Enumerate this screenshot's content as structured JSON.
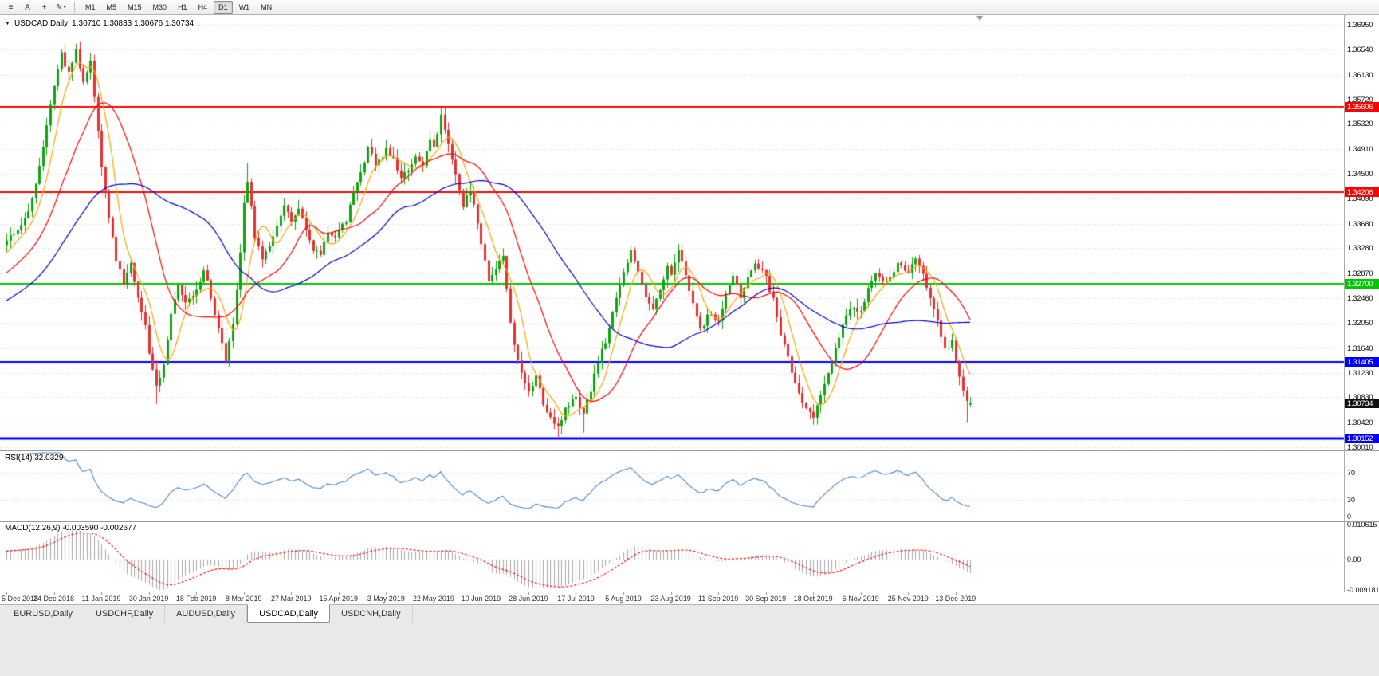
{
  "toolbar": {
    "tools": [
      {
        "name": "charts-list",
        "glyph": "≡"
      },
      {
        "name": "text-annotation",
        "glyph": "A"
      },
      {
        "name": "crosshair-tool",
        "glyph": "+"
      },
      {
        "name": "draw-tool",
        "glyph": "✎",
        "dropdown_glyph": "▾"
      }
    ],
    "timeframes": [
      {
        "label": "M1",
        "active": false
      },
      {
        "label": "M5",
        "active": false
      },
      {
        "label": "M15",
        "active": false
      },
      {
        "label": "M30",
        "active": false
      },
      {
        "label": "H1",
        "active": false
      },
      {
        "label": "H4",
        "active": false
      },
      {
        "label": "D1",
        "active": true
      },
      {
        "label": "W1",
        "active": false
      },
      {
        "label": "MN",
        "active": false
      }
    ]
  },
  "chart": {
    "dropdown_glyph": "▼",
    "symbol": "USDCAD,Daily",
    "ohlc_text": "1.30710 1.30833 1.30676 1.30734",
    "current_price": "1.30734",
    "price_axis": [
      "1.36950",
      "1.36540",
      "1.36130",
      "1.35720",
      "1.35320",
      "1.34910",
      "1.34500",
      "1.34090",
      "1.33680",
      "1.33280",
      "1.32870",
      "1.32460",
      "1.32050",
      "1.31640",
      "1.31230",
      "1.30830",
      "1.30420",
      "1.30010"
    ],
    "dates": [
      "5 Dec 2018",
      "24 Dec 2018",
      "11 Jan 2019",
      "30 Jan 2019",
      "18 Feb 2019",
      "8 Mar 2019",
      "27 Mar 2019",
      "15 Apr 2019",
      "3 May 2019",
      "22 May 2019",
      "10 Jun 2019",
      "28 Jun 2019",
      "17 Jul 2019",
      "5 Aug 2019",
      "23 Aug 2019",
      "11 Sep 2019",
      "30 Sep 2019",
      "18 Oct 2019",
      "6 Nov 2019",
      "25 Nov 2019",
      "13 Dec 2019"
    ]
  },
  "rsi": {
    "title": "RSI(14)",
    "value": "32.0329",
    "scale": [
      "70",
      "30",
      "0"
    ]
  },
  "macd": {
    "title": "MACD(12,26,9)",
    "value": "-0.003590 -0.002677",
    "scale": [
      "0.010615",
      "0.00",
      "-0.009181"
    ]
  },
  "tabs": [
    {
      "label": "EURUSD,Daily",
      "active": false
    },
    {
      "label": "USDCHF,Daily",
      "active": false
    },
    {
      "label": "AUDUSD,Daily",
      "active": false
    },
    {
      "label": "USDCAD,Daily",
      "active": true
    },
    {
      "label": "USDCNH,Daily",
      "active": false
    }
  ],
  "chart_data": {
    "type": "candlestick",
    "symbol": "USDCAD",
    "timeframe": "Daily",
    "x_range": {
      "start": "5 Dec 2018",
      "end": "20 Dec 2019",
      "bars_visible": 265
    },
    "y_axis": {
      "min": 1.29945,
      "max": 1.3708
    },
    "levels": [
      {
        "price": 1.35606,
        "label": "1.35606",
        "color": "#FF0000",
        "width": 2,
        "role": "resistance"
      },
      {
        "price": 1.34206,
        "label": "1.34206",
        "color": "#FF0000",
        "width": 2,
        "role": "resistance"
      },
      {
        "price": 1.327,
        "label": "1.32700",
        "color": "#00C800",
        "width": 2,
        "role": "pivot"
      },
      {
        "price": 1.31405,
        "label": "1.31405",
        "color": "#0000FF",
        "width": 2,
        "role": "support"
      },
      {
        "price": 1.30152,
        "label": "1.30152",
        "color": "#0000FF",
        "width": 3,
        "role": "support"
      }
    ],
    "last_candle": {
      "open": 1.3071,
      "high": 1.30833,
      "low": 1.30676,
      "close": 1.30734
    },
    "close_path_anchors": [
      [
        0,
        1.334
      ],
      [
        3,
        1.3358
      ],
      [
        6,
        1.3392
      ],
      [
        8,
        1.3434
      ],
      [
        11,
        1.353
      ],
      [
        13,
        1.359
      ],
      [
        15,
        1.3646
      ],
      [
        17,
        1.3614
      ],
      [
        19,
        1.3653
      ],
      [
        21,
        1.3598
      ],
      [
        23,
        1.3636
      ],
      [
        25,
        1.3524
      ],
      [
        26,
        1.3462
      ],
      [
        28,
        1.3378
      ],
      [
        30,
        1.331
      ],
      [
        32,
        1.327
      ],
      [
        34,
        1.3302
      ],
      [
        36,
        1.3244
      ],
      [
        38,
        1.3206
      ],
      [
        39,
        1.3152
      ],
      [
        41,
        1.3098
      ],
      [
        43,
        1.3136
      ],
      [
        45,
        1.3216
      ],
      [
        47,
        1.3272
      ],
      [
        49,
        1.3238
      ],
      [
        52,
        1.3256
      ],
      [
        54,
        1.3296
      ],
      [
        56,
        1.3248
      ],
      [
        58,
        1.3196
      ],
      [
        60,
        1.314
      ],
      [
        62,
        1.3206
      ],
      [
        64,
        1.332
      ],
      [
        65,
        1.3404
      ],
      [
        66,
        1.344
      ],
      [
        68,
        1.3346
      ],
      [
        70,
        1.3312
      ],
      [
        72,
        1.3334
      ],
      [
        74,
        1.3364
      ],
      [
        76,
        1.3398
      ],
      [
        78,
        1.3372
      ],
      [
        80,
        1.3392
      ],
      [
        82,
        1.3356
      ],
      [
        84,
        1.3324
      ],
      [
        86,
        1.3316
      ],
      [
        88,
        1.3358
      ],
      [
        90,
        1.3346
      ],
      [
        93,
        1.3374
      ],
      [
        95,
        1.342
      ],
      [
        97,
        1.345
      ],
      [
        99,
        1.3492
      ],
      [
        101,
        1.3466
      ],
      [
        104,
        1.3488
      ],
      [
        106,
        1.3472
      ],
      [
        108,
        1.3446
      ],
      [
        110,
        1.3454
      ],
      [
        112,
        1.3482
      ],
      [
        114,
        1.3466
      ],
      [
        116,
        1.3506
      ],
      [
        117,
        1.3494
      ],
      [
        119,
        1.3544
      ],
      [
        121,
        1.3496
      ],
      [
        123,
        1.3452
      ],
      [
        125,
        1.3398
      ],
      [
        127,
        1.3426
      ],
      [
        129,
        1.3372
      ],
      [
        130,
        1.3336
      ],
      [
        132,
        1.3274
      ],
      [
        134,
        1.3296
      ],
      [
        136,
        1.3318
      ],
      [
        138,
        1.3206
      ],
      [
        140,
        1.314
      ],
      [
        143,
        1.3094
      ],
      [
        145,
        1.3118
      ],
      [
        147,
        1.3074
      ],
      [
        149,
        1.305
      ],
      [
        151,
        1.3036
      ],
      [
        153,
        1.3062
      ],
      [
        156,
        1.3086
      ],
      [
        158,
        1.3054
      ],
      [
        160,
        1.3096
      ],
      [
        162,
        1.314
      ],
      [
        164,
        1.3176
      ],
      [
        166,
        1.3226
      ],
      [
        168,
        1.3268
      ],
      [
        169,
        1.3292
      ],
      [
        171,
        1.3324
      ],
      [
        173,
        1.3286
      ],
      [
        175,
        1.3244
      ],
      [
        177,
        1.3226
      ],
      [
        179,
        1.3256
      ],
      [
        181,
        1.3298
      ],
      [
        182,
        1.3288
      ],
      [
        184,
        1.3324
      ],
      [
        186,
        1.3284
      ],
      [
        188,
        1.3236
      ],
      [
        190,
        1.3194
      ],
      [
        192,
        1.3216
      ],
      [
        195,
        1.3212
      ],
      [
        197,
        1.3252
      ],
      [
        199,
        1.3282
      ],
      [
        201,
        1.3246
      ],
      [
        203,
        1.3282
      ],
      [
        205,
        1.3304
      ],
      [
        207,
        1.329
      ],
      [
        208,
        1.3278
      ],
      [
        210,
        1.3242
      ],
      [
        212,
        1.3186
      ],
      [
        214,
        1.3148
      ],
      [
        216,
        1.3106
      ],
      [
        218,
        1.3078
      ],
      [
        221,
        1.3052
      ],
      [
        223,
        1.3084
      ],
      [
        225,
        1.3124
      ],
      [
        227,
        1.3164
      ],
      [
        229,
        1.3204
      ],
      [
        231,
        1.323
      ],
      [
        234,
        1.3224
      ],
      [
        236,
        1.326
      ],
      [
        238,
        1.3286
      ],
      [
        240,
        1.327
      ],
      [
        242,
        1.3284
      ],
      [
        244,
        1.33
      ],
      [
        247,
        1.329
      ],
      [
        249,
        1.331
      ],
      [
        251,
        1.3284
      ],
      [
        253,
        1.3244
      ],
      [
        255,
        1.3206
      ],
      [
        257,
        1.3164
      ],
      [
        259,
        1.3174
      ],
      [
        260,
        1.3144
      ],
      [
        261,
        1.312
      ],
      [
        262,
        1.3094
      ],
      [
        263,
        1.3074
      ],
      [
        264,
        1.30734
      ]
    ],
    "warmup_anchors": [
      [
        -60,
        1.315
      ],
      [
        -40,
        1.318
      ],
      [
        -25,
        1.3225
      ],
      [
        -12,
        1.3272
      ],
      [
        -1,
        1.333
      ]
    ],
    "warmup_bars": 60,
    "noise_seed": 20191220,
    "noise_close": 0.0009,
    "noise_wick": 0.0015,
    "special_wicks": [
      {
        "index": 19,
        "high": 1.3664
      },
      {
        "index": 41,
        "low": 1.3072
      },
      {
        "index": 66,
        "high": 1.3468
      },
      {
        "index": 119,
        "high": 1.3559
      },
      {
        "index": 151,
        "low": 1.3018
      },
      {
        "index": 158,
        "low": 1.3025
      },
      {
        "index": 221,
        "low": 1.3038
      },
      {
        "index": 263,
        "low": 1.3042
      }
    ],
    "moving_averages": [
      {
        "period": 7,
        "method": "sma",
        "color": "#FFA500"
      },
      {
        "period": 20,
        "method": "sma",
        "color": "#FF0000"
      },
      {
        "period": 45,
        "method": "sma",
        "color": "#0000CD"
      }
    ],
    "colors": {
      "up": "#0FA30F",
      "down": "#E53030",
      "grid": "#DCDCDC",
      "rsi": "#4A86C8",
      "macd_hist": "#A8A8A8",
      "macd_signal": "#FF0000",
      "current_badge": "#111111"
    },
    "indicators": {
      "rsi": {
        "period": 14,
        "last": 32.0329,
        "levels": [
          70,
          30
        ]
      },
      "macd": {
        "fast": 12,
        "slow": 26,
        "signal": 9,
        "last_macd": -0.00359,
        "last_signal": -0.002677,
        "scale_max": 0.010615,
        "scale_min": -0.009181
      }
    }
  }
}
